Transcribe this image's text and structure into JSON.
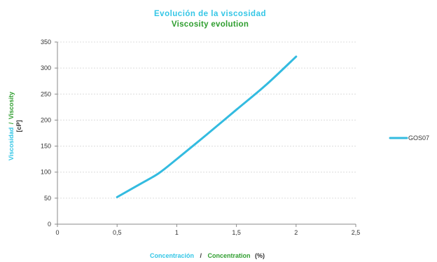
{
  "chart_data": {
    "type": "line",
    "title": "Evolución de la  viscosidad",
    "subtitle": "Viscosity evolution",
    "xlabel": {
      "es": "Concentración",
      "separator": "/",
      "en": "Concentration",
      "unit": "(%)"
    },
    "ylabel": {
      "es": "Viscosidad",
      "separator": "/",
      "en": "Viscosity",
      "unit": "[cP]"
    },
    "xlim": [
      0,
      2.5
    ],
    "ylim": [
      0,
      350
    ],
    "xticks": [
      "0",
      "0,5",
      "1",
      "1,5",
      "2",
      "2,5"
    ],
    "yticks": [
      "0",
      "50",
      "100",
      "150",
      "200",
      "250",
      "300",
      "350"
    ],
    "grid": true,
    "legend_position": "right",
    "series": [
      {
        "name": "GOS07",
        "color": "#33bbe0",
        "x": [
          0.5,
          0.7,
          0.85,
          1.0,
          1.25,
          1.5,
          1.75,
          2.0
        ],
        "y": [
          52,
          78,
          98,
          125,
          172,
          220,
          268,
          322
        ]
      }
    ]
  }
}
